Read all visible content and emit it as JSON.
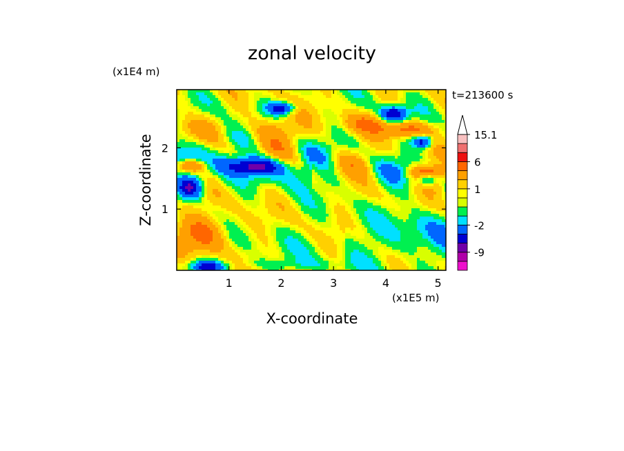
{
  "chart_data": {
    "type": "heatmap",
    "title": "zonal velocity",
    "xlabel": "X-coordinate",
    "ylabel": "Z-coordinate",
    "x_scale_label": "(x1E5 m)",
    "y_scale_label": "(x1E4 m)",
    "time_label": "t=213600 s",
    "xlim": [
      0,
      5.15
    ],
    "ylim": [
      0,
      2.95
    ],
    "x_ticks": [
      1,
      2,
      3,
      4,
      5
    ],
    "y_ticks": [
      1,
      2
    ],
    "colorbar": {
      "levels": [
        {
          "lo": -15,
          "hi": -12,
          "color": "#ee10cc"
        },
        {
          "lo": -12,
          "hi": -9,
          "color": "#b000a8"
        },
        {
          "lo": -9,
          "hi": -6,
          "color": "#7000a8"
        },
        {
          "lo": -6,
          "hi": -4,
          "color": "#0000d2"
        },
        {
          "lo": -4,
          "hi": -2,
          "color": "#0066ff"
        },
        {
          "lo": -2,
          "hi": -1,
          "color": "#00e0ff"
        },
        {
          "lo": -1,
          "hi": 0,
          "color": "#00f050"
        },
        {
          "lo": 0,
          "hi": 0.5,
          "color": "#d8ff00"
        },
        {
          "lo": 0.5,
          "hi": 1,
          "color": "#ffff00"
        },
        {
          "lo": 1,
          "hi": 2,
          "color": "#ffd000"
        },
        {
          "lo": 2,
          "hi": 4,
          "color": "#ffa000"
        },
        {
          "lo": 4,
          "hi": 6,
          "color": "#ff6600"
        },
        {
          "lo": 6,
          "hi": 8,
          "color": "#ee1010"
        },
        {
          "lo": 8,
          "hi": 11,
          "color": "#f07070"
        },
        {
          "lo": 11,
          "hi": 15.1,
          "color": "#f8c0c0"
        }
      ],
      "tick_labels": [
        "15.1",
        "6",
        "1",
        "-2",
        "-9"
      ],
      "overflow_arrow": "top"
    },
    "grid": false,
    "field_note": "contoured 2D zonal velocity field; values approximate"
  }
}
